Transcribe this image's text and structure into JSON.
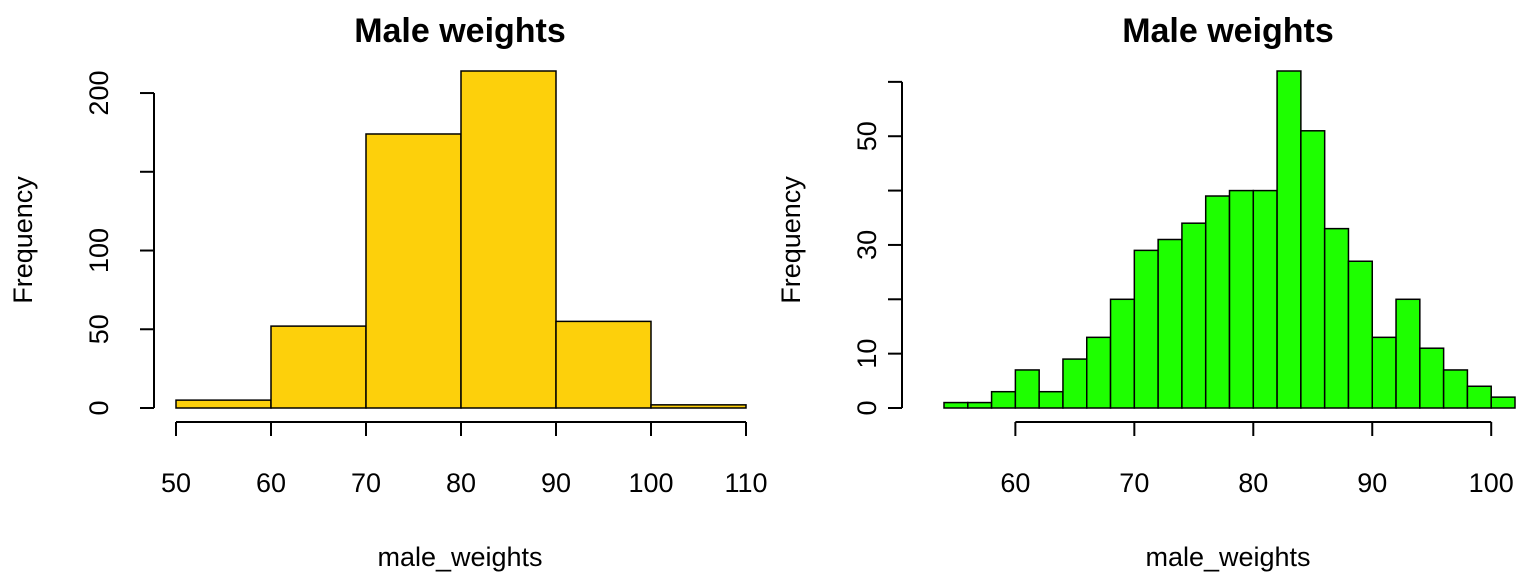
{
  "chart_data": [
    {
      "type": "bar",
      "title": "Male weights",
      "xlabel": "male_weights",
      "ylabel": "Frequency",
      "bar_color": "#fdd00b",
      "bins": [
        {
          "x0": 50,
          "x1": 60,
          "count": 5
        },
        {
          "x0": 60,
          "x1": 70,
          "count": 52
        },
        {
          "x0": 70,
          "x1": 80,
          "count": 174
        },
        {
          "x0": 80,
          "x1": 90,
          "count": 214
        },
        {
          "x0": 90,
          "x1": 100,
          "count": 55
        },
        {
          "x0": 100,
          "x1": 110,
          "count": 2
        }
      ],
      "xlim": [
        50,
        110
      ],
      "ylim": [
        0,
        214
      ],
      "xticks": [
        50,
        60,
        70,
        80,
        90,
        100,
        110
      ],
      "xtick_labels": [
        "50",
        "60",
        "70",
        "80",
        "90",
        "100",
        "110"
      ],
      "yticks": [
        0,
        50,
        100,
        150,
        200
      ],
      "ytick_labels": [
        "0",
        "50",
        "100",
        "",
        "200"
      ]
    },
    {
      "type": "bar",
      "title": "Male weights",
      "xlabel": "male_weights",
      "ylabel": "Frequency",
      "bar_color": "#1eff00",
      "bins": [
        {
          "x0": 54,
          "x1": 56,
          "count": 1
        },
        {
          "x0": 56,
          "x1": 58,
          "count": 1
        },
        {
          "x0": 58,
          "x1": 60,
          "count": 3
        },
        {
          "x0": 60,
          "x1": 62,
          "count": 7
        },
        {
          "x0": 62,
          "x1": 64,
          "count": 3
        },
        {
          "x0": 64,
          "x1": 66,
          "count": 9
        },
        {
          "x0": 66,
          "x1": 68,
          "count": 13
        },
        {
          "x0": 68,
          "x1": 70,
          "count": 20
        },
        {
          "x0": 70,
          "x1": 72,
          "count": 29
        },
        {
          "x0": 72,
          "x1": 74,
          "count": 31
        },
        {
          "x0": 74,
          "x1": 76,
          "count": 34
        },
        {
          "x0": 76,
          "x1": 78,
          "count": 39
        },
        {
          "x0": 78,
          "x1": 80,
          "count": 40
        },
        {
          "x0": 80,
          "x1": 82,
          "count": 40
        },
        {
          "x0": 82,
          "x1": 84,
          "count": 62
        },
        {
          "x0": 84,
          "x1": 86,
          "count": 51
        },
        {
          "x0": 86,
          "x1": 88,
          "count": 33
        },
        {
          "x0": 88,
          "x1": 90,
          "count": 27
        },
        {
          "x0": 90,
          "x1": 92,
          "count": 13
        },
        {
          "x0": 92,
          "x1": 94,
          "count": 20
        },
        {
          "x0": 94,
          "x1": 96,
          "count": 11
        },
        {
          "x0": 96,
          "x1": 98,
          "count": 7
        },
        {
          "x0": 98,
          "x1": 100,
          "count": 4
        },
        {
          "x0": 100,
          "x1": 102,
          "count": 2
        }
      ],
      "xlim": [
        54,
        102
      ],
      "ylim": [
        0,
        62
      ],
      "xticks": [
        60,
        70,
        80,
        90,
        100
      ],
      "xtick_labels": [
        "60",
        "70",
        "80",
        "90",
        "100"
      ],
      "yticks": [
        0,
        10,
        20,
        30,
        40,
        50,
        60
      ],
      "ytick_labels": [
        "0",
        "10",
        "",
        "30",
        "",
        "50",
        ""
      ]
    }
  ]
}
